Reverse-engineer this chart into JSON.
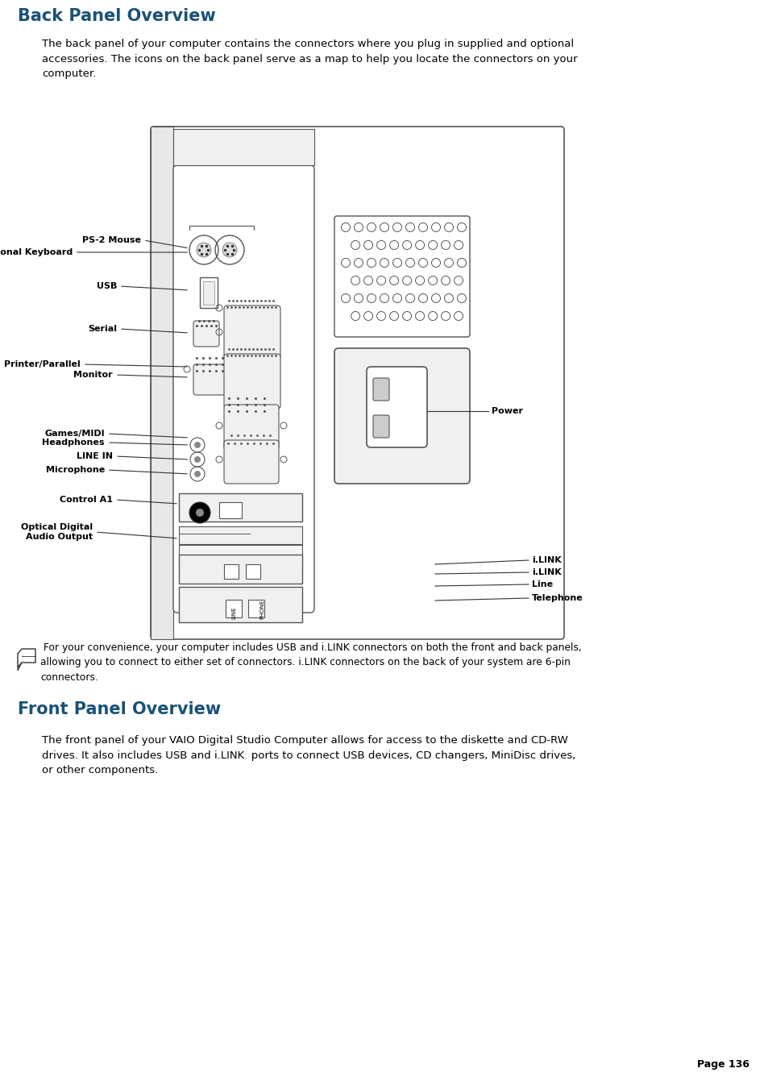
{
  "title1": "Back Panel Overview",
  "title2": "Front Panel Overview",
  "heading_color": "#1a5276",
  "text_color": "#000000",
  "bg_color": "#ffffff",
  "line_color": "#333333",
  "body_text1": "The back panel of your computer contains the connectors where you plug in supplied and optional\naccessories. The icons on the back panel serve as a map to help you locate the connectors on your\ncomputer.",
  "note_text": " For your convenience, your computer includes USB and i.LINK connectors on both the front and back panels,\nallowing you to connect to either set of connectors. i.LINK connectors on the back of your system are 6-pin\nconnectors.",
  "body_text2": "The front panel of your VAIO Digital Studio Computer allows for access to the diskette and CD-RW\ndrives. It also includes USB and i.LINK  ports to connect USB devices, CD changers, MiniDisc drives,\nor other components.",
  "page_num": "Page 136"
}
